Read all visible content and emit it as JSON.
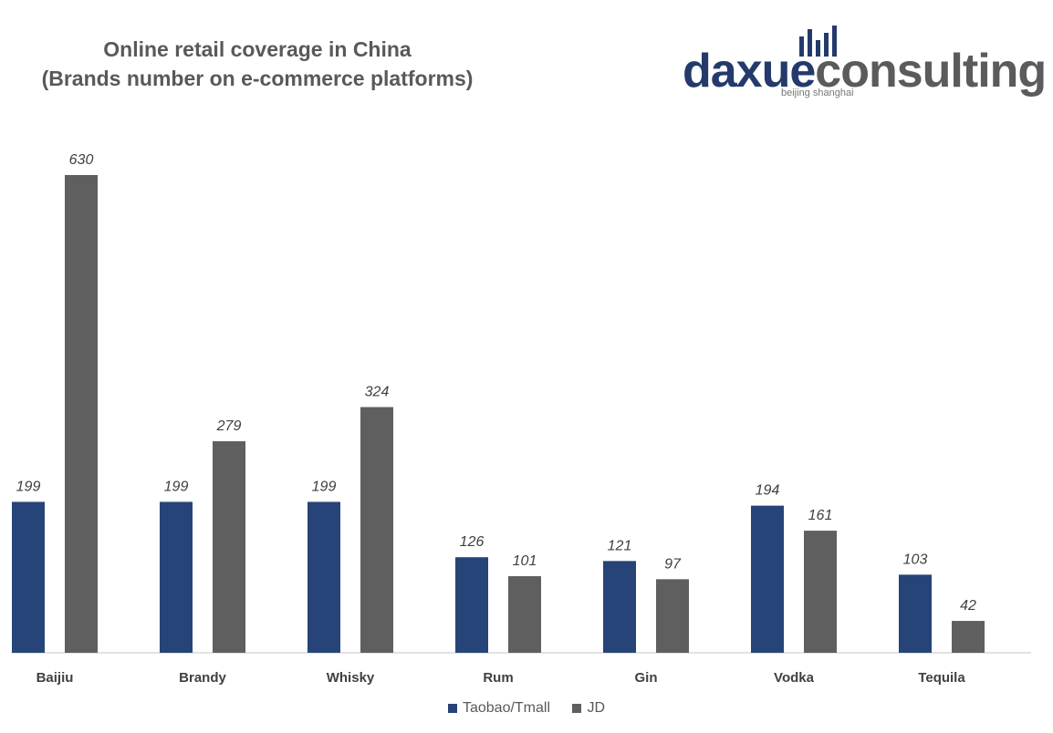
{
  "title_line1": "Online retail coverage in China",
  "title_line2": "(Brands number on e-commerce platforms)",
  "logo": {
    "part1": "daxue",
    "part2": "consulting",
    "sub": "beijing shanghai"
  },
  "colors": {
    "taobao": "#264478",
    "jd": "#5f5f5f",
    "axis": "#d9d9d9"
  },
  "chart_data": {
    "type": "bar",
    "title": "Online retail coverage in China (Brands number on e-commerce platforms)",
    "categories": [
      "Baijiu",
      "Brandy",
      "Whisky",
      "Rum",
      "Gin",
      "Vodka",
      "Tequila"
    ],
    "series": [
      {
        "name": "Taobao/Tmall",
        "values": [
          199,
          199,
          199,
          126,
          121,
          194,
          103
        ]
      },
      {
        "name": "JD",
        "values": [
          630,
          279,
          324,
          101,
          97,
          161,
          42
        ]
      }
    ],
    "ylim": [
      0,
      650
    ],
    "grid": false,
    "legend": "bottom-center",
    "data_labels": true
  }
}
